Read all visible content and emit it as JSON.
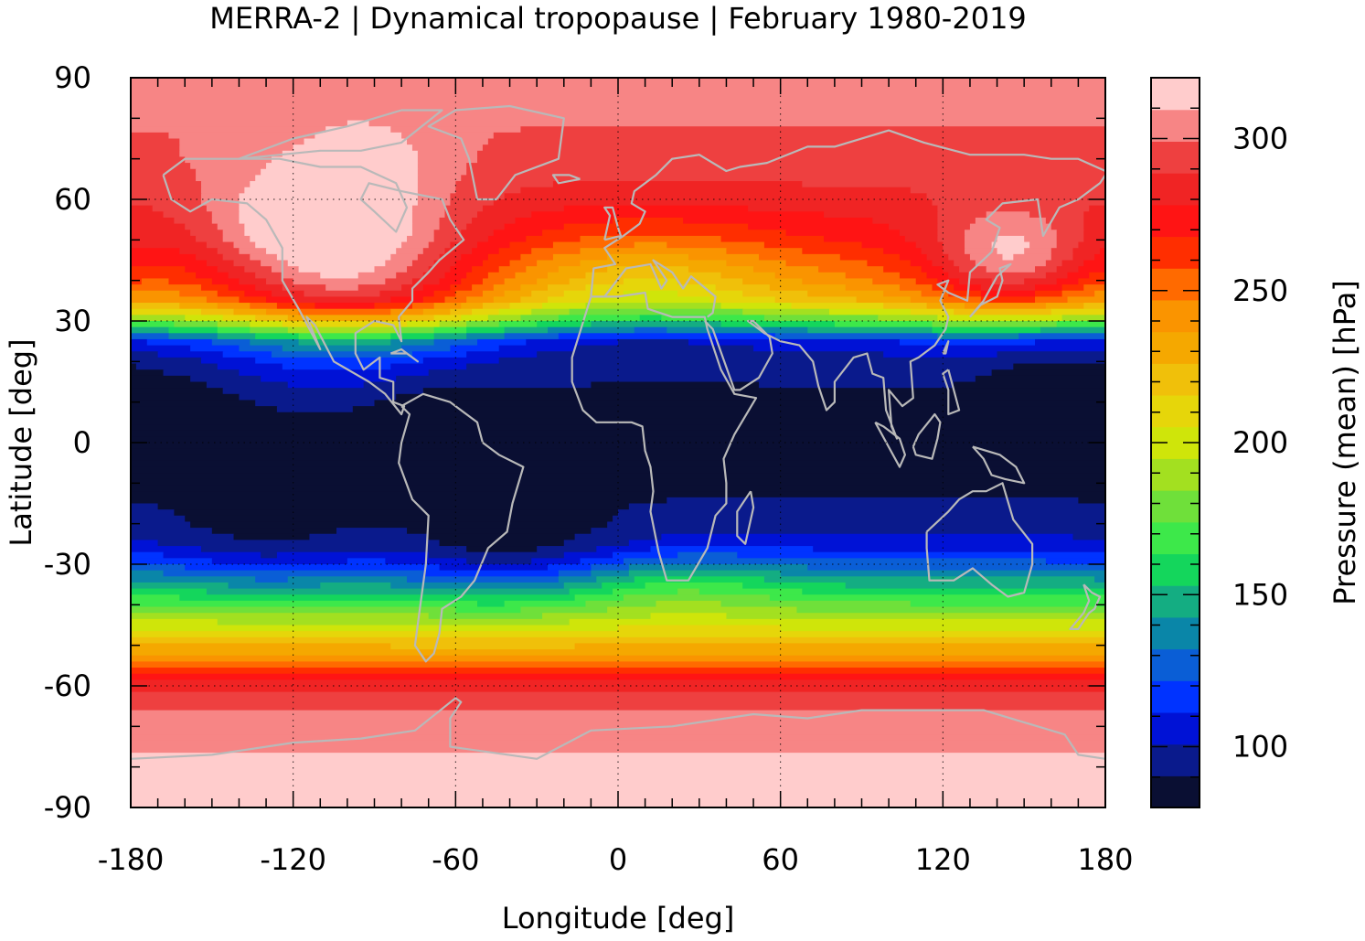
{
  "chart_data": {
    "type": "heatmap",
    "title": "MERRA-2 | Dynamical tropopause | February 1980-2019",
    "xlabel": "Longitude [deg]",
    "ylabel": "Latitude [deg]",
    "xlim": [
      -180,
      180
    ],
    "ylim": [
      -90,
      90
    ],
    "x_ticks": [
      -180,
      -120,
      -60,
      0,
      60,
      120,
      180
    ],
    "y_ticks": [
      90,
      60,
      30,
      0,
      -30,
      -60,
      -90
    ],
    "x_tick_labels": [
      "-180",
      "-120",
      "-60",
      "0",
      "60",
      "120",
      "180"
    ],
    "y_tick_labels": [
      "90",
      "60",
      "30",
      "0",
      "-30",
      "-60",
      "-90"
    ],
    "grid": "dotted at ticks",
    "colorbar": {
      "label": "Pressure (mean) [hPa]",
      "range": [
        80,
        320
      ],
      "ticks": [
        100,
        150,
        200,
        250,
        300
      ],
      "tick_labels": [
        "100",
        "150",
        "200",
        "250",
        "300"
      ],
      "colors": [
        "#0a0f33",
        "#0a1a8c",
        "#0012d6",
        "#0033ff",
        "#0a5ed6",
        "#0a86a8",
        "#14ad82",
        "#14d65c",
        "#3de84a",
        "#6fe03a",
        "#a3e020",
        "#cfe50a",
        "#e6d60a",
        "#f0c00a",
        "#f5a800",
        "#fa9400",
        "#ff6a00",
        "#ff2e00",
        "#ff1414",
        "#f02424",
        "#ee4040",
        "#f78585",
        "#ffcccc"
      ]
    },
    "zonal_mean_pressure_hPa": {
      "latitude": [
        -90,
        -80,
        -70,
        -60,
        -50,
        -45,
        -40,
        -35,
        -30,
        -25,
        -20,
        -10,
        0,
        10,
        20,
        25,
        30,
        35,
        40,
        50,
        60,
        70,
        80,
        90
      ],
      "values": [
        315,
        312,
        306,
        285,
        225,
        200,
        175,
        150,
        125,
        105,
        95,
        88,
        85,
        88,
        95,
        110,
        175,
        225,
        245,
        270,
        285,
        296,
        300,
        300
      ]
    },
    "notable_features": [
      {
        "lon": -95,
        "lat": 70,
        "value": 318
      },
      {
        "lon": 145,
        "lat": 48,
        "value": 315
      },
      {
        "lon": -170,
        "lat": 5,
        "value": 80
      },
      {
        "lon": -65,
        "lat": 3,
        "value": 80
      },
      {
        "lon": 160,
        "lat": 10,
        "value": 80
      }
    ],
    "overlay": "coastlines"
  }
}
